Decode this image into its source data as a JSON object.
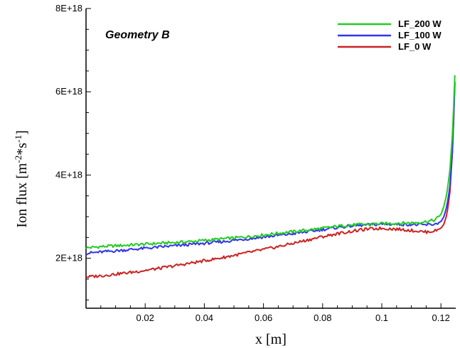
{
  "chart_data": {
    "type": "line",
    "title": "",
    "annotation": "Geometry B",
    "xlabel": "x [m]",
    "ylabel_parts": {
      "base": "Ion flux [m",
      "exp1": "-2",
      "mid": "*s",
      "exp2": "-1",
      "end": "]"
    },
    "xlim": [
      0.0,
      0.125
    ],
    "ylim": [
      8e+17,
      8e+18
    ],
    "x_ticks": [
      0.02,
      0.04,
      0.06,
      0.08,
      0.1,
      0.12
    ],
    "x_tick_labels": [
      "0.02",
      "0.04",
      "0.06",
      "0.08",
      "0.1",
      "0.12"
    ],
    "y_ticks": [
      2e+18,
      4e+18,
      6e+18,
      8e+18
    ],
    "y_tick_labels": [
      "2E+18",
      "4E+18",
      "6E+18",
      "8E+18"
    ],
    "grid": false,
    "legend_position": "top-right",
    "series": [
      {
        "name": "LF_200 W",
        "color": "#22cc22",
        "points": [
          [
            0.0,
            2.25e+18
          ],
          [
            0.005,
            2.28e+18
          ],
          [
            0.01,
            2.3e+18
          ],
          [
            0.015,
            2.32e+18
          ],
          [
            0.02,
            2.34e+18
          ],
          [
            0.025,
            2.36e+18
          ],
          [
            0.03,
            2.38e+18
          ],
          [
            0.035,
            2.4e+18
          ],
          [
            0.04,
            2.43e+18
          ],
          [
            0.045,
            2.46e+18
          ],
          [
            0.05,
            2.49e+18
          ],
          [
            0.055,
            2.52e+18
          ],
          [
            0.06,
            2.56e+18
          ],
          [
            0.065,
            2.6e+18
          ],
          [
            0.07,
            2.64e+18
          ],
          [
            0.075,
            2.68e+18
          ],
          [
            0.08,
            2.72e+18
          ],
          [
            0.085,
            2.77e+18
          ],
          [
            0.09,
            2.8e+18
          ],
          [
            0.095,
            2.82e+18
          ],
          [
            0.1,
            2.83e+18
          ],
          [
            0.105,
            2.84e+18
          ],
          [
            0.11,
            2.85e+18
          ],
          [
            0.115,
            2.88e+18
          ],
          [
            0.118,
            2.92e+18
          ],
          [
            0.12,
            3.05e+18
          ],
          [
            0.121,
            3.25e+18
          ],
          [
            0.122,
            3.55e+18
          ],
          [
            0.123,
            4.1e+18
          ],
          [
            0.124,
            5.1e+18
          ],
          [
            0.1247,
            6.4e+18
          ]
        ]
      },
      {
        "name": "LF_100 W",
        "color": "#3333ee",
        "points": [
          [
            0.0,
            2.12e+18
          ],
          [
            0.005,
            2.15e+18
          ],
          [
            0.01,
            2.18e+18
          ],
          [
            0.015,
            2.21e+18
          ],
          [
            0.02,
            2.24e+18
          ],
          [
            0.025,
            2.27e+18
          ],
          [
            0.03,
            2.3e+18
          ],
          [
            0.035,
            2.33e+18
          ],
          [
            0.04,
            2.36e+18
          ],
          [
            0.045,
            2.39e+18
          ],
          [
            0.05,
            2.43e+18
          ],
          [
            0.055,
            2.47e+18
          ],
          [
            0.06,
            2.51e+18
          ],
          [
            0.065,
            2.55e+18
          ],
          [
            0.07,
            2.59e+18
          ],
          [
            0.075,
            2.64e+18
          ],
          [
            0.08,
            2.69e+18
          ],
          [
            0.085,
            2.74e+18
          ],
          [
            0.09,
            2.78e+18
          ],
          [
            0.095,
            2.8e+18
          ],
          [
            0.1,
            2.82e+18
          ],
          [
            0.105,
            2.82e+18
          ],
          [
            0.11,
            2.81e+18
          ],
          [
            0.115,
            2.8e+18
          ],
          [
            0.118,
            2.82e+18
          ],
          [
            0.12,
            2.88e+18
          ],
          [
            0.121,
            3e+18
          ],
          [
            0.122,
            3.25e+18
          ],
          [
            0.123,
            3.7e+18
          ],
          [
            0.124,
            4.7e+18
          ],
          [
            0.1247,
            6.2e+18
          ]
        ]
      },
      {
        "name": "LF_0 W",
        "color": "#cc2222",
        "points": [
          [
            0.0,
            1.55e+18
          ],
          [
            0.005,
            1.58e+18
          ],
          [
            0.01,
            1.62e+18
          ],
          [
            0.015,
            1.66e+18
          ],
          [
            0.02,
            1.71e+18
          ],
          [
            0.025,
            1.76e+18
          ],
          [
            0.03,
            1.82e+18
          ],
          [
            0.035,
            1.88e+18
          ],
          [
            0.04,
            1.94e+18
          ],
          [
            0.045,
            2e+18
          ],
          [
            0.05,
            2.07e+18
          ],
          [
            0.055,
            2.14e+18
          ],
          [
            0.06,
            2.21e+18
          ],
          [
            0.065,
            2.28e+18
          ],
          [
            0.07,
            2.36e+18
          ],
          [
            0.075,
            2.44e+18
          ],
          [
            0.08,
            2.52e+18
          ],
          [
            0.085,
            2.59e+18
          ],
          [
            0.09,
            2.65e+18
          ],
          [
            0.095,
            2.7e+18
          ],
          [
            0.1,
            2.72e+18
          ],
          [
            0.105,
            2.7e+18
          ],
          [
            0.11,
            2.67e+18
          ],
          [
            0.115,
            2.63e+18
          ],
          [
            0.118,
            2.66e+18
          ],
          [
            0.12,
            2.72e+18
          ],
          [
            0.121,
            2.82e+18
          ],
          [
            0.122,
            3.05e+18
          ],
          [
            0.123,
            3.55e+18
          ],
          [
            0.124,
            4.7e+18
          ],
          [
            0.1247,
            6.25e+18
          ]
        ]
      }
    ]
  }
}
